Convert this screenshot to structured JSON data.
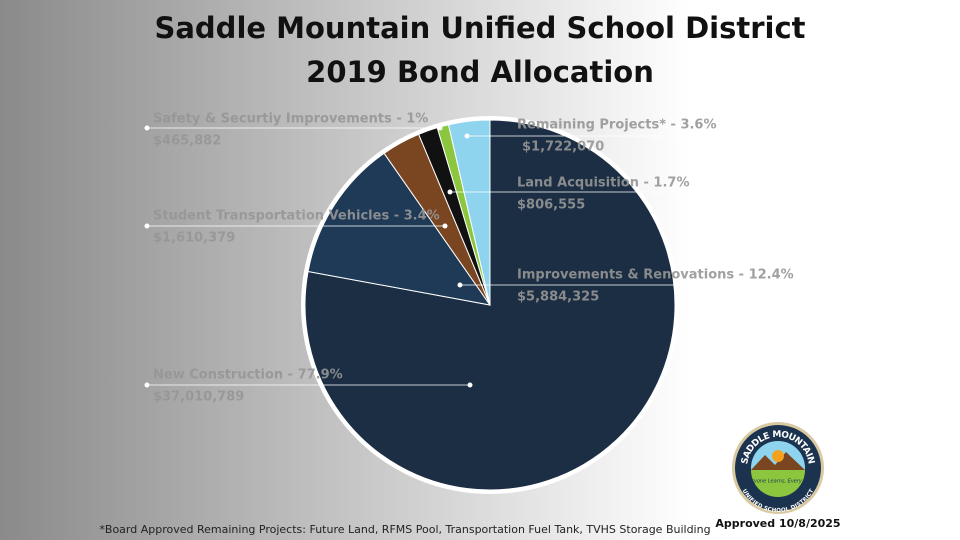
{
  "chart_data": {
    "type": "pie",
    "title": "Saddle Mountain Unified School District",
    "subtitle": "2019 Bond Allocation",
    "categories": [
      "New Construction - 77.9%",
      "Improvements & Renovations - 12.4%",
      "Student Transportation Vehicles - 3.4%",
      "Land Acquisition - 1.7%",
      "Safety & Securtiy Improvements - 1%",
      "Remaining Projects* - 3.6%"
    ],
    "values": [
      77.9,
      12.4,
      3.4,
      1.7,
      1,
      3.6
    ],
    "amount_labels": [
      "$37,010,789",
      "$5,884,325",
      "$1,610,379",
      "$806,555",
      "$465,882",
      "$1,722,070"
    ],
    "colors": [
      "#1b2e44",
      "#1e3a56",
      "#7a4622",
      "#111111",
      "#8cc63f",
      "#8fd4ee"
    ],
    "footnote": "*Board Approved Remaining Projects: Future Land, RFMS Pool, Transportation Fuel Tank, TVHS Storage Building",
    "approved": "Approved 10/8/2025"
  },
  "logo": {
    "top": "SADDLE MOUNTAIN",
    "bottom": "UNIFIED SCHOOL DISTRICT",
    "tagline": "Everyone Learns, Every Day"
  }
}
